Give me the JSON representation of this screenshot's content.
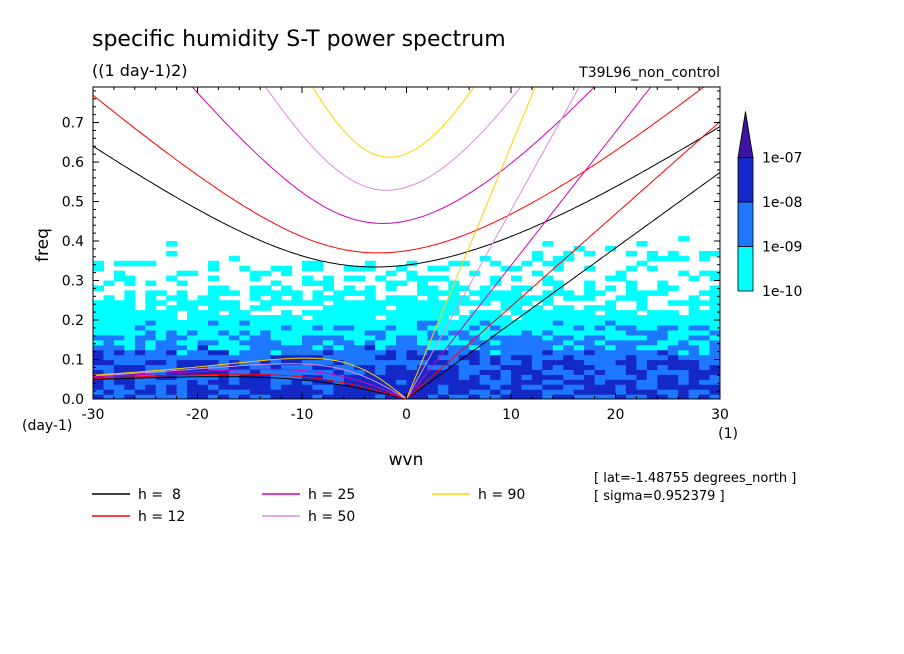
{
  "chart_data": {
    "type": "heatmap",
    "title": "specific humidity S-T power spectrum",
    "subtitle": "((1 day-1)2)",
    "run_label": "T39L96_non_control",
    "xlabel": "wvn",
    "ylabel": "freq",
    "x_unit": "(1)",
    "y_unit": "(day-1)",
    "xlim": [
      -30,
      30
    ],
    "ylim": [
      0,
      0.79
    ],
    "x_ticks": [
      -30,
      -20,
      -10,
      0,
      10,
      20,
      30
    ],
    "x_tick_labels": [
      "-30",
      "-20",
      "-10",
      "0",
      "10",
      "20",
      "30"
    ],
    "y_ticks": [
      0,
      0.1,
      0.2,
      0.3,
      0.4,
      0.5,
      0.6,
      0.7
    ],
    "y_tick_labels": [
      "0.0",
      "0.1",
      "0.2",
      "0.3",
      "0.4",
      "0.5",
      "0.6",
      "0.7"
    ],
    "colorbar": {
      "labels": [
        "1e-10",
        "1e-09",
        "1e-08",
        "1e-07"
      ],
      "colors": [
        "#00ffff",
        "#1e78ff",
        "#1428c8",
        "#3c14a0"
      ]
    },
    "dispersion_curves": [
      {
        "label": "h =  8",
        "h": 8,
        "color": "#000000"
      },
      {
        "label": "h = 12",
        "h": 12,
        "color": "#ff0000"
      },
      {
        "label": "h = 25",
        "h": 25,
        "color": "#d600b8"
      },
      {
        "label": "h = 50",
        "h": 50,
        "color": "#dc8cdc"
      },
      {
        "label": "h = 90",
        "h": 90,
        "color": "#ffd200"
      }
    ],
    "annotations": [
      "[ lat=-1.48755 degrees_north ]",
      "[ sigma=0.952379 ]"
    ]
  }
}
